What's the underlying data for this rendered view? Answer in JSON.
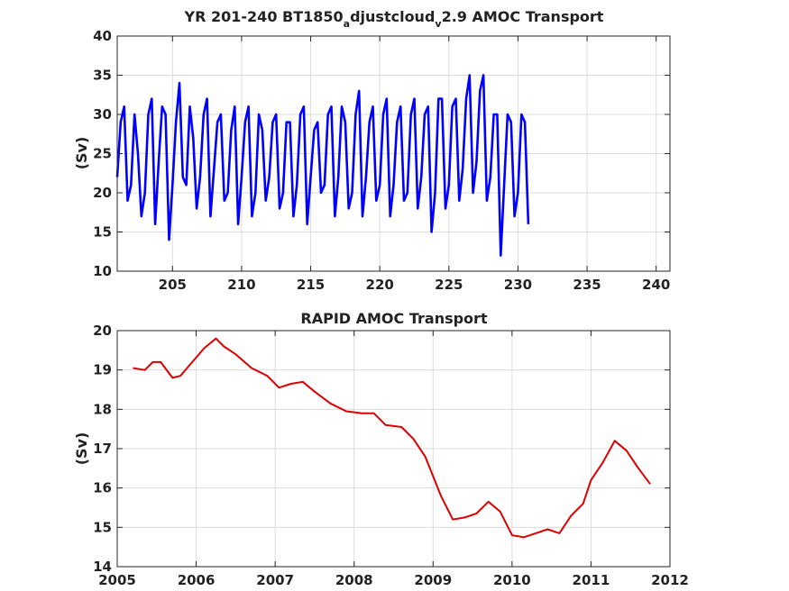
{
  "chart_data": [
    {
      "type": "line",
      "title": "YR 201-240 BT1850",
      "title_sub_a": "a",
      "title_mid": "djustcloud",
      "title_sub_v": "v",
      "title_end": "2.9 AMOC Transport",
      "xlabel": "",
      "ylabel": "(Sv)",
      "xlim": [
        201,
        241
      ],
      "ylim": [
        10,
        40
      ],
      "xticks": [
        205,
        210,
        215,
        220,
        225,
        230,
        235,
        240
      ],
      "yticks": [
        10,
        15,
        20,
        25,
        30,
        35,
        40
      ],
      "grid": true,
      "color": "#0000ff",
      "series": [
        {
          "x_start": 201,
          "x_step": 0.25,
          "values": [
            22,
            29,
            31,
            19,
            21,
            30,
            25,
            17,
            20,
            30,
            32,
            16,
            24,
            31,
            30,
            14,
            21,
            29,
            34,
            22,
            21,
            31,
            27,
            18,
            22,
            30,
            32,
            17,
            23,
            29,
            30,
            19,
            20,
            28,
            31,
            16,
            22,
            29,
            31,
            17,
            20,
            30,
            28,
            19,
            22,
            29,
            30,
            18,
            20,
            29,
            29,
            17,
            21,
            30,
            31,
            16,
            22,
            28,
            29,
            20,
            21,
            30,
            31,
            17,
            22,
            31,
            29,
            18,
            20,
            30,
            33,
            17,
            22,
            29,
            31,
            19,
            21,
            30,
            32,
            17,
            21,
            29,
            31,
            19,
            20,
            30,
            32,
            18,
            22,
            30,
            31,
            15,
            20,
            32,
            32,
            18,
            21,
            31,
            32,
            19,
            23,
            32,
            35,
            20,
            24,
            33,
            35,
            19,
            22,
            30,
            30,
            12,
            21,
            30,
            29,
            17,
            20,
            30,
            29,
            16
          ]
        }
      ]
    },
    {
      "type": "line",
      "title": "RAPID AMOC Transport",
      "xlabel": "",
      "ylabel": "(Sv)",
      "xlim": [
        2005,
        2012
      ],
      "ylim": [
        14,
        20
      ],
      "xticks": [
        2005,
        2006,
        2007,
        2008,
        2009,
        2010,
        2011,
        2012
      ],
      "yticks": [
        14,
        15,
        16,
        17,
        18,
        19,
        20
      ],
      "grid": true,
      "color": "#dd0000",
      "series": [
        {
          "x": [
            2005.2,
            2005.35,
            2005.45,
            2005.55,
            2005.7,
            2005.8,
            2005.95,
            2006.1,
            2006.25,
            2006.35,
            2006.5,
            2006.7,
            2006.9,
            2007.05,
            2007.2,
            2007.35,
            2007.5,
            2007.7,
            2007.9,
            2008.1,
            2008.25,
            2008.4,
            2008.6,
            2008.75,
            2008.9,
            2009.0,
            2009.1,
            2009.25,
            2009.4,
            2009.55,
            2009.7,
            2009.85,
            2010.0,
            2010.15,
            2010.3,
            2010.45,
            2010.6,
            2010.75,
            2010.9,
            2011.0,
            2011.15,
            2011.3,
            2011.45,
            2011.6,
            2011.75
          ],
          "values": [
            19.05,
            19.0,
            19.2,
            19.2,
            18.8,
            18.85,
            19.2,
            19.55,
            19.8,
            19.6,
            19.4,
            19.05,
            18.85,
            18.55,
            18.65,
            18.7,
            18.45,
            18.15,
            17.95,
            17.9,
            17.9,
            17.6,
            17.55,
            17.25,
            16.8,
            16.3,
            15.8,
            15.2,
            15.25,
            15.35,
            15.65,
            15.4,
            14.8,
            14.75,
            14.85,
            14.95,
            14.85,
            15.3,
            15.6,
            16.2,
            16.65,
            17.2,
            16.95,
            16.5,
            16.1
          ]
        }
      ]
    }
  ]
}
